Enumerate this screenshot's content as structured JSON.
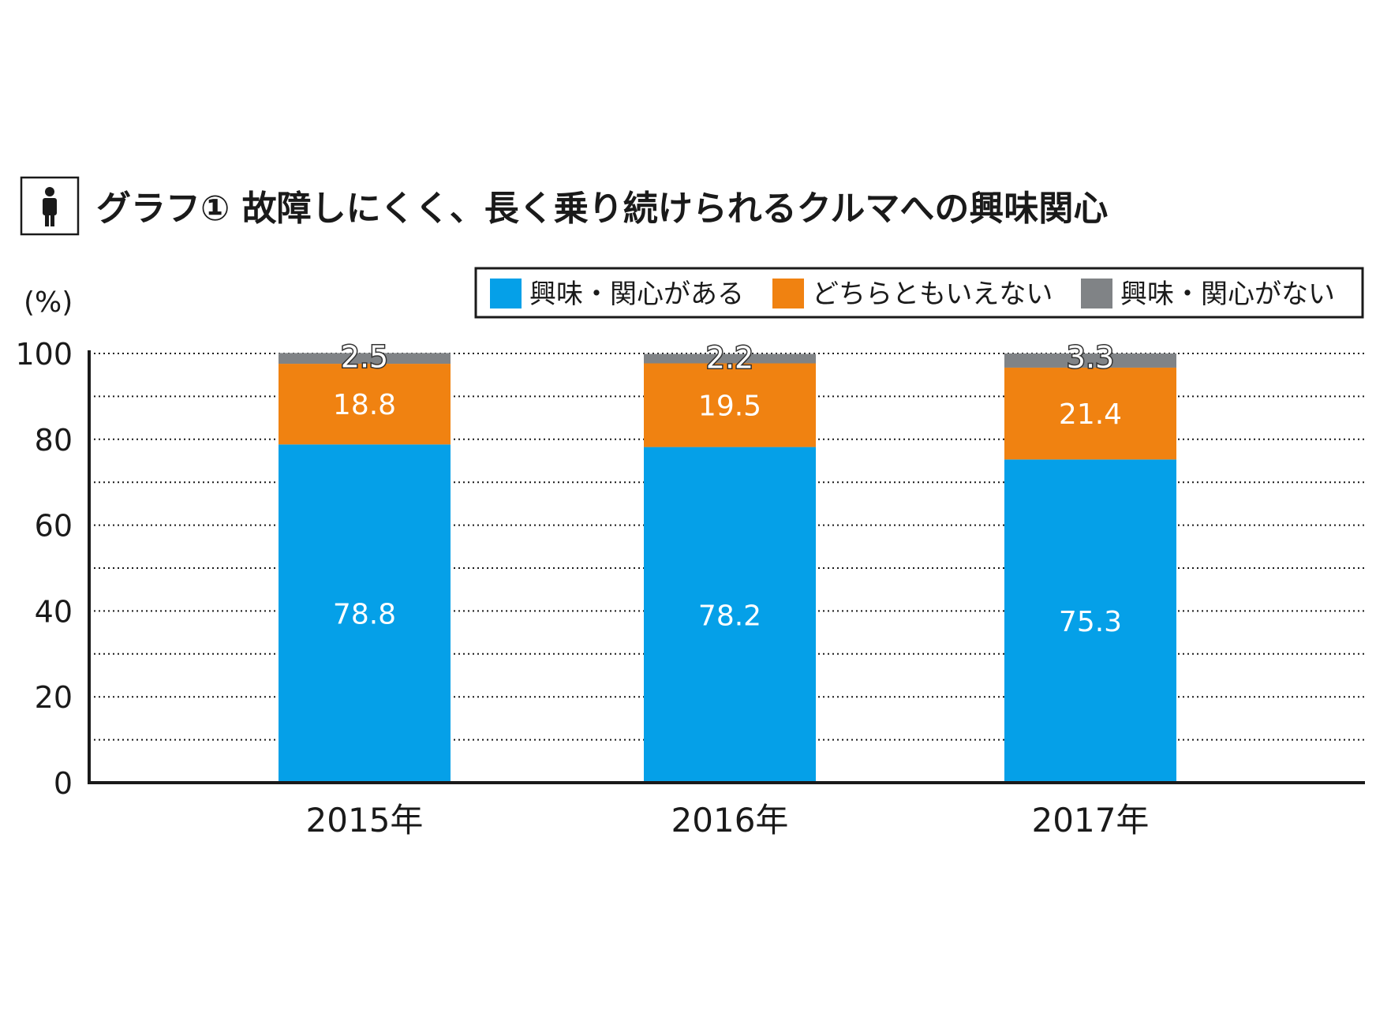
{
  "chart_data": {
    "type": "bar",
    "stacked": true,
    "title": "グラフ① 故障しにくく、長く乗り続けられるクルマへの興味関心",
    "title_icon": "person-icon",
    "ylabel": "(%)",
    "xlabel": "",
    "ylim": [
      0,
      100
    ],
    "yticks": [
      0,
      20,
      40,
      60,
      80,
      100
    ],
    "grid": true,
    "grid_style": "dotted",
    "legend_position": "top-right",
    "categories": [
      "2015年",
      "2016年",
      "2017年"
    ],
    "series": [
      {
        "name": "興味・関心がある",
        "color": "#05a0e8",
        "values": [
          78.8,
          78.2,
          75.3
        ]
      },
      {
        "name": "どちらともいえない",
        "color": "#f08211",
        "values": [
          18.8,
          19.5,
          21.4
        ]
      },
      {
        "name": "興味・関心がない",
        "color": "#808386",
        "values": [
          2.5,
          2.2,
          3.3
        ]
      }
    ],
    "data_labels": [
      [
        "78.8",
        "78.2",
        "75.3"
      ],
      [
        "18.8",
        "19.5",
        "21.4"
      ],
      [
        "2.5",
        "2.2",
        "3.3"
      ]
    ]
  }
}
